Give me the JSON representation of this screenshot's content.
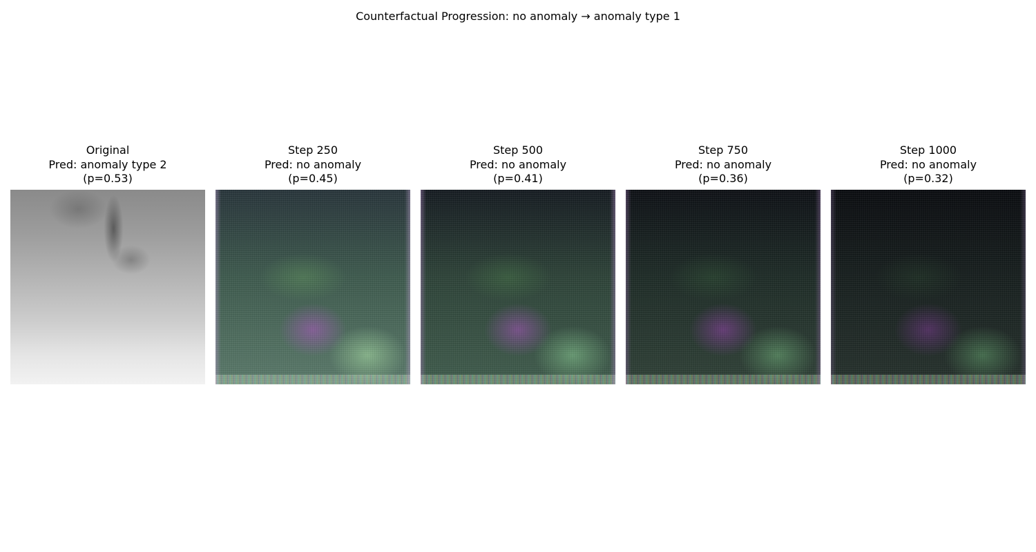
{
  "figure": {
    "suptitle": "Counterfactual Progression: no anomaly → anomaly type 1"
  },
  "panels": [
    {
      "title_line1": "Original",
      "title_line2": "Pred: anomaly type 2",
      "title_line3": "(p=0.53)",
      "image": "grayscale-original"
    },
    {
      "title_line1": "Step 250",
      "title_line2": "Pred: no anomaly",
      "title_line3": "(p=0.45)",
      "image": "counterfactual"
    },
    {
      "title_line1": "Step 500",
      "title_line2": "Pred: no anomaly",
      "title_line3": "(p=0.41)",
      "image": "counterfactual"
    },
    {
      "title_line1": "Step 750",
      "title_line2": "Pred: no anomaly",
      "title_line3": "(p=0.36)",
      "image": "counterfactual"
    },
    {
      "title_line1": "Step 1000",
      "title_line2": "Pred: no anomaly",
      "title_line3": "(p=0.32)",
      "image": "counterfactual"
    }
  ],
  "colors": {
    "background": "#ffffff",
    "text": "#000000"
  }
}
